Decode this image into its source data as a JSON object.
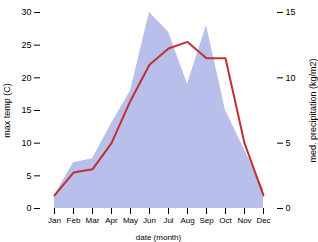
{
  "chart_data": {
    "type": "line",
    "xlabel": "date (month)",
    "ylabel": "max temp (C)",
    "y2label": "med. precipitation (kg/m2)",
    "categories": [
      "Jan",
      "Feb",
      "Mar",
      "Apr",
      "May",
      "Jun",
      "Jul",
      "Aug",
      "Sep",
      "Oct",
      "Nov",
      "Dec"
    ],
    "series": [
      {
        "type": "area",
        "axis": "y2",
        "color": "#b0b8e8",
        "values": [
          1.0,
          3.5,
          3.8,
          6.5,
          9.0,
          15.0,
          13.5,
          9.5,
          14.0,
          7.5,
          4.5,
          1.5
        ]
      },
      {
        "type": "line",
        "color": "#c03030",
        "values": [
          2.0,
          5.5,
          6.0,
          10.0,
          16.5,
          22.0,
          24.5,
          25.5,
          23.0,
          23.0,
          10.0,
          2.0
        ]
      }
    ],
    "ylim": [
      0,
      30
    ],
    "yticks": [
      0,
      5,
      10,
      15,
      20,
      25,
      30
    ],
    "y2lim": [
      0,
      15
    ],
    "y2ticks": [
      0,
      5,
      10,
      15
    ]
  }
}
